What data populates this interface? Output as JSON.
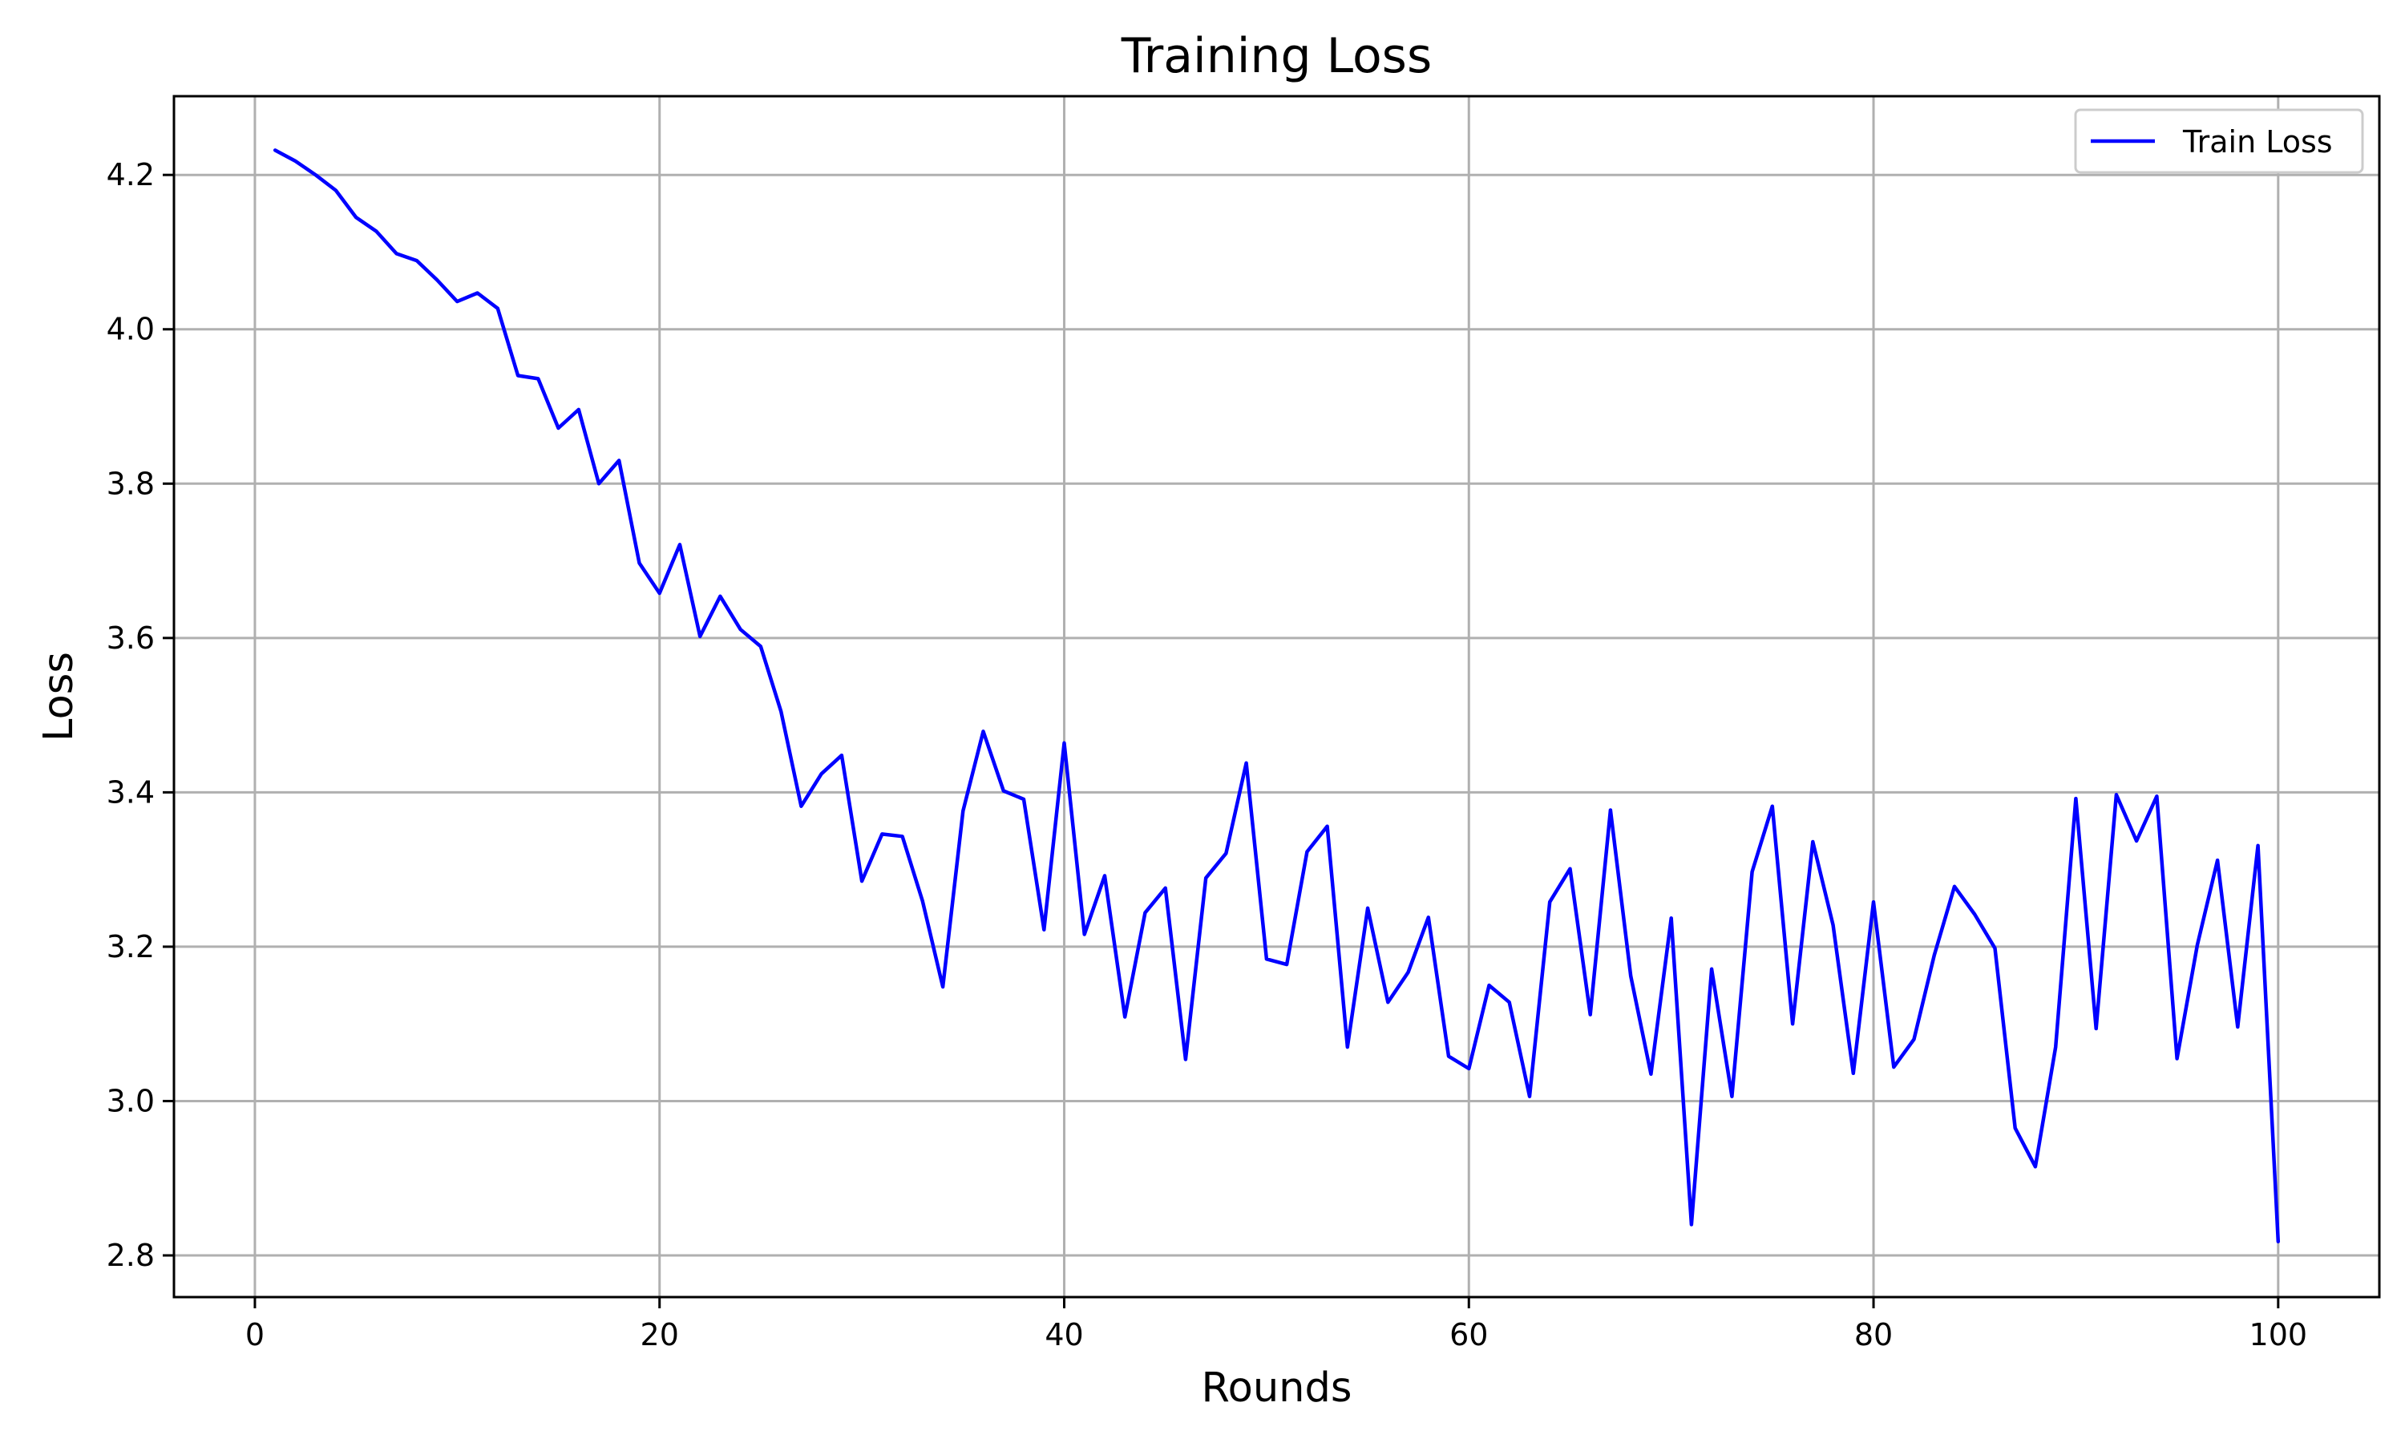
{
  "chart_data": {
    "type": "line",
    "title": "Training Loss",
    "xlabel": "Rounds",
    "ylabel": "Loss",
    "xlim": [
      -4,
      105
    ],
    "ylim": [
      2.746,
      4.302
    ],
    "xticks": [
      0,
      20,
      40,
      60,
      80,
      100
    ],
    "yticks": [
      2.8,
      3.0,
      3.2,
      3.4,
      3.6,
      3.8,
      4.0,
      4.2
    ],
    "xtick_labels": [
      "0",
      "20",
      "40",
      "60",
      "80",
      "100"
    ],
    "ytick_labels": [
      "2.8",
      "3.0",
      "3.2",
      "3.4",
      "3.6",
      "3.8",
      "4.0",
      "4.2"
    ],
    "grid": true,
    "legend_position": "top-right",
    "series": [
      {
        "name": "Train Loss",
        "color": "#0000ff",
        "x": [
          1,
          2,
          3,
          4,
          5,
          6,
          7,
          8,
          9,
          10,
          11,
          12,
          13,
          14,
          15,
          16,
          17,
          18,
          19,
          20,
          21,
          22,
          23,
          24,
          25,
          26,
          27,
          28,
          29,
          30,
          31,
          32,
          33,
          34,
          35,
          36,
          37,
          38,
          39,
          40,
          41,
          42,
          43,
          44,
          45,
          46,
          47,
          48,
          49,
          50,
          51,
          52,
          53,
          54,
          55,
          56,
          57,
          58,
          59,
          60,
          61,
          62,
          63,
          64,
          65,
          66,
          67,
          68,
          69,
          70,
          71,
          72,
          73,
          74,
          75,
          76,
          77,
          78,
          79,
          80,
          81,
          82,
          83,
          84,
          85,
          86,
          87,
          88,
          89,
          90,
          91,
          92,
          93,
          94,
          95,
          96,
          97,
          98,
          99,
          100
        ],
        "values": [
          4.232,
          4.218,
          4.2,
          4.18,
          4.145,
          4.127,
          4.098,
          4.089,
          4.064,
          4.036,
          4.047,
          4.027,
          3.94,
          3.936,
          3.872,
          3.896,
          3.8,
          3.83,
          3.697,
          3.658,
          3.721,
          3.602,
          3.654,
          3.611,
          3.589,
          3.505,
          3.382,
          3.424,
          3.448,
          3.285,
          3.346,
          3.343,
          3.259,
          3.148,
          3.376,
          3.479,
          3.402,
          3.391,
          3.222,
          3.464,
          3.216,
          3.292,
          3.109,
          3.244,
          3.276,
          3.054,
          3.289,
          3.321,
          3.438,
          3.184,
          3.177,
          3.323,
          3.356,
          3.07,
          3.25,
          3.128,
          3.167,
          3.238,
          3.058,
          3.042,
          3.15,
          3.128,
          3.006,
          3.258,
          3.301,
          3.112,
          3.377,
          3.162,
          3.035,
          3.237,
          2.84,
          3.171,
          3.006,
          3.297,
          3.382,
          3.1,
          3.336,
          3.228,
          3.036,
          3.258,
          3.044,
          3.08,
          3.189,
          3.278,
          3.242,
          3.198,
          2.965,
          2.915,
          3.07,
          3.392,
          3.094,
          3.397,
          3.337,
          3.395,
          3.055,
          3.202,
          3.312,
          3.096,
          3.331,
          2.818
        ]
      }
    ]
  }
}
